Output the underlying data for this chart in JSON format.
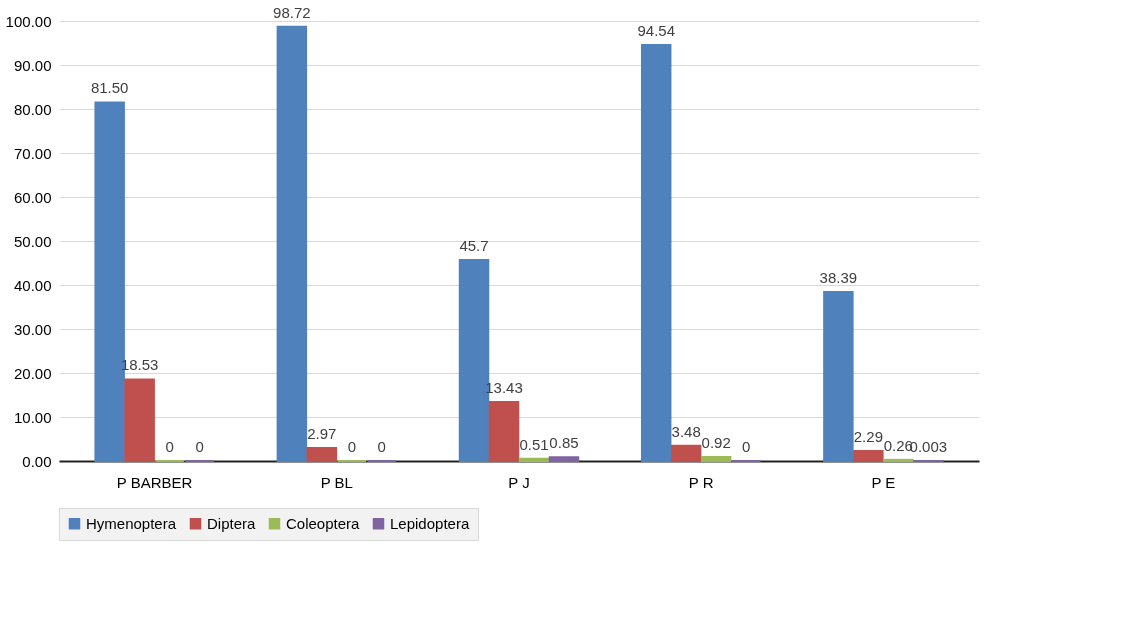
{
  "chart_data": {
    "type": "bar",
    "categories": [
      "P BARBER",
      "P BL",
      "P J",
      "P R",
      "P E"
    ],
    "series": [
      {
        "name": "Hymenoptera",
        "color": "#4f81bd",
        "values": [
          81.5,
          98.72,
          45.7,
          94.54,
          38.39
        ],
        "value_labels": [
          "81.50",
          "98.72",
          "45.7",
          "94.54",
          "38.39"
        ]
      },
      {
        "name": "Diptera",
        "color": "#c0504d",
        "values": [
          18.53,
          2.97,
          13.43,
          3.48,
          2.29
        ],
        "value_labels": [
          "18.53",
          "2.97",
          "13.43",
          "3.48",
          "2.29"
        ]
      },
      {
        "name": "Coleoptera",
        "color": "#9bbb59",
        "values": [
          0,
          0,
          0.51,
          0.92,
          0.26
        ],
        "value_labels": [
          "0",
          "0",
          "0.51",
          "0.92",
          "0.26"
        ]
      },
      {
        "name": "Lepidoptera",
        "color": "#8064a2",
        "values": [
          0,
          0,
          0.85,
          0,
          0.003
        ],
        "value_labels": [
          "0",
          "0",
          "0.85",
          "0",
          "0.003"
        ]
      }
    ],
    "ylim": [
      0,
      100
    ],
    "yticks": [
      {
        "value": 0,
        "label": "0.00"
      },
      {
        "value": 10,
        "label": "10.00"
      },
      {
        "value": 20,
        "label": "20.00"
      },
      {
        "value": 30,
        "label": "30.00"
      },
      {
        "value": 40,
        "label": "40.00"
      },
      {
        "value": 50,
        "label": "50.00"
      },
      {
        "value": 60,
        "label": "60.00"
      },
      {
        "value": 70,
        "label": "70.00"
      },
      {
        "value": 80,
        "label": "80.00"
      },
      {
        "value": 90,
        "label": "90.00"
      },
      {
        "value": 100,
        "label": "100.00"
      }
    ],
    "grid": "y",
    "legend": "bottom"
  }
}
